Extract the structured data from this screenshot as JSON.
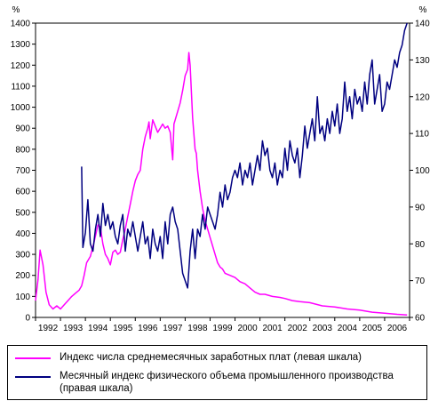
{
  "chart_data": {
    "type": "line",
    "title": "",
    "xlabel": "",
    "y_left": {
      "unit_label": "%",
      "min": 0,
      "max": 1400,
      "ticks": [
        0,
        100,
        200,
        300,
        400,
        500,
        600,
        700,
        800,
        900,
        1000,
        1100,
        1200,
        1300,
        1400
      ]
    },
    "y_right": {
      "unit_label": "%",
      "min": 60,
      "max": 140,
      "ticks": [
        60,
        70,
        80,
        90,
        100,
        110,
        120,
        130,
        140
      ]
    },
    "x_range": [
      1992.0,
      2007.0
    ],
    "years": [
      "1992",
      "1993",
      "1994",
      "1995",
      "1996",
      "1997",
      "1998",
      "1999",
      "2000",
      "2001",
      "2002",
      "2003",
      "2004",
      "2005",
      "2006"
    ],
    "grid": false,
    "legend_position": "bottom",
    "series": [
      {
        "name": "Индекс числа среднемесячных заработных плат (левая шкала)",
        "axis": "left",
        "color": "#ff00ff",
        "points": [
          [
            1992.0,
            80
          ],
          [
            1992.1,
            180
          ],
          [
            1992.18,
            320
          ],
          [
            1992.3,
            250
          ],
          [
            1992.42,
            120
          ],
          [
            1992.55,
            60
          ],
          [
            1992.7,
            40
          ],
          [
            1992.85,
            55
          ],
          [
            1993.0,
            40
          ],
          [
            1993.15,
            60
          ],
          [
            1993.3,
            80
          ],
          [
            1993.45,
            100
          ],
          [
            1993.6,
            115
          ],
          [
            1993.75,
            130
          ],
          [
            1993.85,
            150
          ],
          [
            1993.95,
            200
          ],
          [
            1994.05,
            260
          ],
          [
            1994.2,
            290
          ],
          [
            1994.35,
            360
          ],
          [
            1994.5,
            440
          ],
          [
            1994.6,
            430
          ],
          [
            1994.7,
            350
          ],
          [
            1994.8,
            300
          ],
          [
            1994.9,
            280
          ],
          [
            1995.0,
            250
          ],
          [
            1995.1,
            310
          ],
          [
            1995.2,
            320
          ],
          [
            1995.3,
            300
          ],
          [
            1995.4,
            310
          ],
          [
            1995.5,
            370
          ],
          [
            1995.6,
            420
          ],
          [
            1995.7,
            480
          ],
          [
            1995.8,
            540
          ],
          [
            1995.9,
            600
          ],
          [
            1996.0,
            650
          ],
          [
            1996.1,
            680
          ],
          [
            1996.2,
            700
          ],
          [
            1996.3,
            800
          ],
          [
            1996.4,
            860
          ],
          [
            1996.5,
            900
          ],
          [
            1996.55,
            930
          ],
          [
            1996.6,
            850
          ],
          [
            1996.7,
            940
          ],
          [
            1996.8,
            910
          ],
          [
            1996.9,
            880
          ],
          [
            1997.0,
            900
          ],
          [
            1997.1,
            920
          ],
          [
            1997.2,
            900
          ],
          [
            1997.3,
            910
          ],
          [
            1997.4,
            880
          ],
          [
            1997.5,
            750
          ],
          [
            1997.55,
            920
          ],
          [
            1997.6,
            940
          ],
          [
            1997.7,
            980
          ],
          [
            1997.8,
            1020
          ],
          [
            1997.9,
            1080
          ],
          [
            1998.0,
            1150
          ],
          [
            1998.1,
            1180
          ],
          [
            1998.15,
            1260
          ],
          [
            1998.2,
            1200
          ],
          [
            1998.3,
            950
          ],
          [
            1998.4,
            800
          ],
          [
            1998.45,
            780
          ],
          [
            1998.5,
            700
          ],
          [
            1998.6,
            600
          ],
          [
            1998.7,
            520
          ],
          [
            1998.8,
            460
          ],
          [
            1998.9,
            420
          ],
          [
            1999.0,
            380
          ],
          [
            1999.1,
            340
          ],
          [
            1999.2,
            300
          ],
          [
            1999.3,
            260
          ],
          [
            1999.4,
            240
          ],
          [
            1999.5,
            230
          ],
          [
            1999.6,
            210
          ],
          [
            1999.8,
            200
          ],
          [
            2000.0,
            190
          ],
          [
            2000.2,
            170
          ],
          [
            2000.4,
            160
          ],
          [
            2000.6,
            140
          ],
          [
            2000.8,
            120
          ],
          [
            2001.0,
            110
          ],
          [
            2001.2,
            110
          ],
          [
            2001.5,
            100
          ],
          [
            2001.8,
            95
          ],
          [
            2002.0,
            90
          ],
          [
            2002.3,
            80
          ],
          [
            2002.6,
            75
          ],
          [
            2003.0,
            70
          ],
          [
            2003.5,
            55
          ],
          [
            2004.0,
            50
          ],
          [
            2004.5,
            40
          ],
          [
            2005.0,
            35
          ],
          [
            2005.5,
            25
          ],
          [
            2006.0,
            20
          ],
          [
            2006.5,
            15
          ],
          [
            2006.9,
            12
          ]
        ]
      },
      {
        "name": "Месячный индекс физического объема промышленного производства (правая шкала)",
        "axis": "right",
        "color": "#000080",
        "points": [
          [
            1993.85,
            101
          ],
          [
            1993.9,
            79
          ],
          [
            1994.0,
            83
          ],
          [
            1994.1,
            92
          ],
          [
            1994.2,
            80
          ],
          [
            1994.3,
            78
          ],
          [
            1994.4,
            84
          ],
          [
            1994.5,
            88
          ],
          [
            1994.6,
            82
          ],
          [
            1994.7,
            91
          ],
          [
            1994.8,
            85
          ],
          [
            1994.9,
            88
          ],
          [
            1995.0,
            84
          ],
          [
            1995.1,
            86
          ],
          [
            1995.2,
            82
          ],
          [
            1995.3,
            80
          ],
          [
            1995.4,
            85
          ],
          [
            1995.5,
            88
          ],
          [
            1995.6,
            78
          ],
          [
            1995.7,
            84
          ],
          [
            1995.8,
            82
          ],
          [
            1995.9,
            86
          ],
          [
            1996.0,
            82
          ],
          [
            1996.1,
            78
          ],
          [
            1996.2,
            82
          ],
          [
            1996.3,
            86
          ],
          [
            1996.4,
            80
          ],
          [
            1996.5,
            82
          ],
          [
            1996.6,
            76
          ],
          [
            1996.7,
            84
          ],
          [
            1996.8,
            80
          ],
          [
            1996.9,
            78
          ],
          [
            1997.0,
            82
          ],
          [
            1997.1,
            76
          ],
          [
            1997.2,
            86
          ],
          [
            1997.3,
            80
          ],
          [
            1997.4,
            88
          ],
          [
            1997.5,
            90
          ],
          [
            1997.6,
            86
          ],
          [
            1997.7,
            84
          ],
          [
            1997.8,
            78
          ],
          [
            1997.9,
            72
          ],
          [
            1998.0,
            70
          ],
          [
            1998.1,
            68
          ],
          [
            1998.2,
            78
          ],
          [
            1998.3,
            84
          ],
          [
            1998.4,
            76
          ],
          [
            1998.5,
            84
          ],
          [
            1998.6,
            82
          ],
          [
            1998.7,
            88
          ],
          [
            1998.8,
            84
          ],
          [
            1998.9,
            90
          ],
          [
            1999.0,
            88
          ],
          [
            1999.1,
            86
          ],
          [
            1999.2,
            84
          ],
          [
            1999.3,
            88
          ],
          [
            1999.4,
            94
          ],
          [
            1999.5,
            90
          ],
          [
            1999.6,
            96
          ],
          [
            1999.7,
            92
          ],
          [
            1999.8,
            94
          ],
          [
            1999.9,
            98
          ],
          [
            2000.0,
            100
          ],
          [
            2000.1,
            98
          ],
          [
            2000.2,
            102
          ],
          [
            2000.3,
            96
          ],
          [
            2000.4,
            100
          ],
          [
            2000.5,
            98
          ],
          [
            2000.6,
            102
          ],
          [
            2000.7,
            96
          ],
          [
            2000.8,
            100
          ],
          [
            2000.9,
            104
          ],
          [
            2001.0,
            100
          ],
          [
            2001.1,
            108
          ],
          [
            2001.2,
            104
          ],
          [
            2001.3,
            106
          ],
          [
            2001.4,
            100
          ],
          [
            2001.5,
            98
          ],
          [
            2001.6,
            102
          ],
          [
            2001.7,
            96
          ],
          [
            2001.8,
            100
          ],
          [
            2001.9,
            98
          ],
          [
            2002.0,
            106
          ],
          [
            2002.1,
            100
          ],
          [
            2002.2,
            108
          ],
          [
            2002.3,
            104
          ],
          [
            2002.4,
            102
          ],
          [
            2002.5,
            106
          ],
          [
            2002.6,
            98
          ],
          [
            2002.7,
            104
          ],
          [
            2002.8,
            112
          ],
          [
            2002.9,
            106
          ],
          [
            2003.0,
            110
          ],
          [
            2003.1,
            114
          ],
          [
            2003.2,
            108
          ],
          [
            2003.3,
            120
          ],
          [
            2003.4,
            110
          ],
          [
            2003.5,
            112
          ],
          [
            2003.6,
            108
          ],
          [
            2003.7,
            114
          ],
          [
            2003.8,
            110
          ],
          [
            2003.9,
            116
          ],
          [
            2004.0,
            112
          ],
          [
            2004.1,
            118
          ],
          [
            2004.2,
            110
          ],
          [
            2004.3,
            114
          ],
          [
            2004.4,
            124
          ],
          [
            2004.5,
            116
          ],
          [
            2004.6,
            120
          ],
          [
            2004.7,
            114
          ],
          [
            2004.8,
            122
          ],
          [
            2004.9,
            118
          ],
          [
            2005.0,
            120
          ],
          [
            2005.1,
            116
          ],
          [
            2005.2,
            124
          ],
          [
            2005.3,
            118
          ],
          [
            2005.4,
            126
          ],
          [
            2005.5,
            130
          ],
          [
            2005.6,
            118
          ],
          [
            2005.7,
            122
          ],
          [
            2005.8,
            126
          ],
          [
            2005.9,
            116
          ],
          [
            2006.0,
            118
          ],
          [
            2006.1,
            124
          ],
          [
            2006.2,
            122
          ],
          [
            2006.3,
            126
          ],
          [
            2006.4,
            130
          ],
          [
            2006.5,
            128
          ],
          [
            2006.6,
            132
          ],
          [
            2006.7,
            134
          ],
          [
            2006.8,
            138
          ],
          [
            2006.9,
            140
          ]
        ]
      }
    ]
  }
}
